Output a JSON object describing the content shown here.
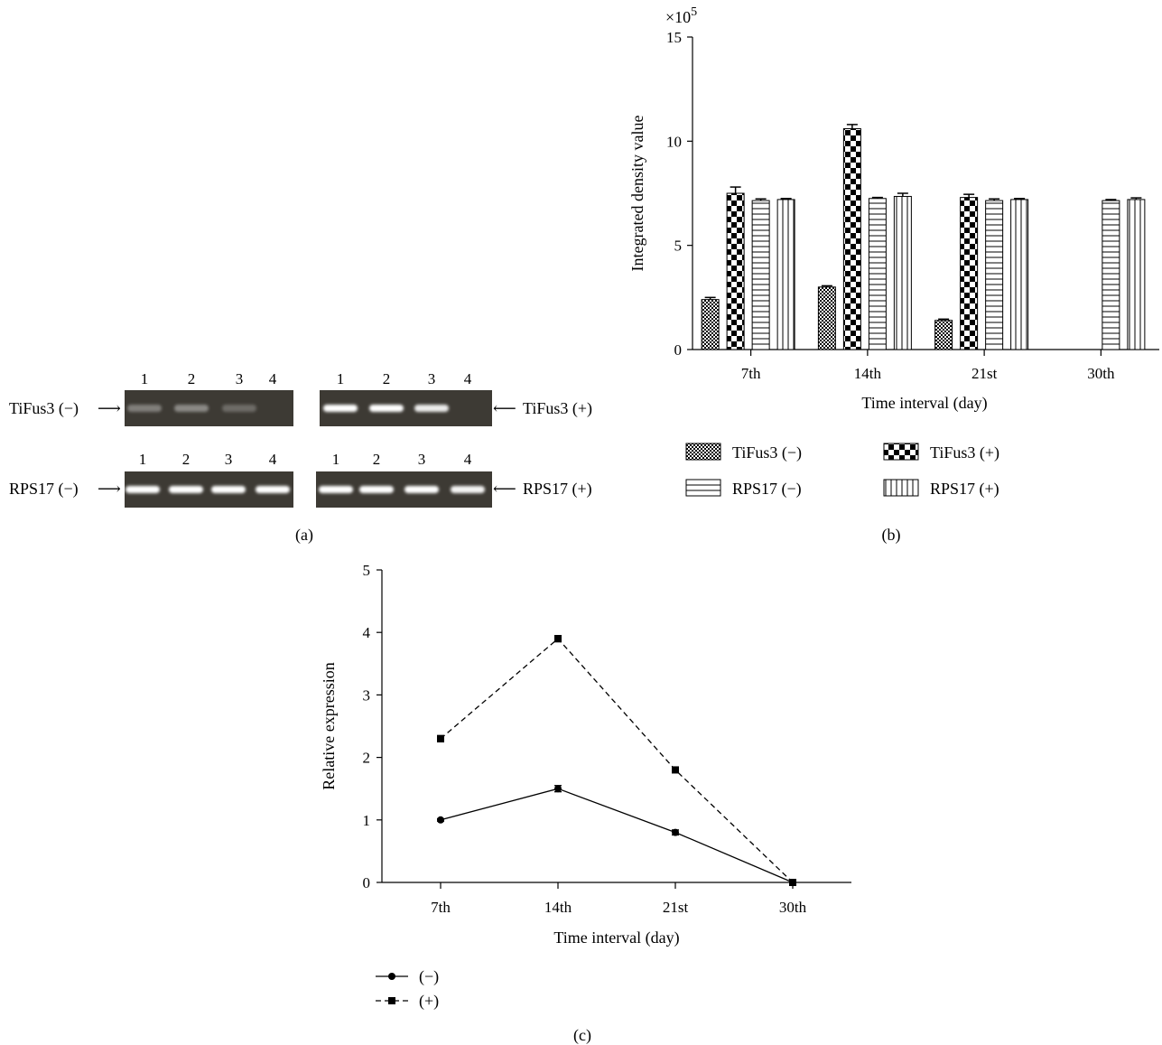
{
  "panel_a": {
    "caption": "(a)",
    "lane_numbers": [
      "1",
      "2",
      "3",
      "4"
    ],
    "row_labels": {
      "tifus3_minus": "TiFus3 (−)",
      "tifus3_plus": "TiFus3 (+)",
      "rps17_minus": "RPS17 (−)",
      "rps17_plus": "RPS17 (+)"
    },
    "gels": [
      {
        "name": "tifus3-minus",
        "bands": [
          0.35,
          0.4,
          0.25,
          0.0
        ]
      },
      {
        "name": "tifus3-plus",
        "bands": [
          1.0,
          1.0,
          0.9,
          0.0
        ]
      },
      {
        "name": "rps17-minus",
        "bands": [
          1.0,
          1.0,
          1.0,
          1.0
        ]
      },
      {
        "name": "rps17-plus",
        "bands": [
          1.0,
          1.0,
          1.0,
          0.95
        ]
      }
    ],
    "colors": {
      "gel": "#3d3a34",
      "band": "#ffffff"
    }
  },
  "chart_data": [
    {
      "panel": "b",
      "type": "bar",
      "caption": "(b)",
      "categories": [
        "7th",
        "14th",
        "21st",
        "30th"
      ],
      "xlabel": "Time interval (day)",
      "ylabel": "Integrated density value",
      "scale_label": "×10",
      "scale_exp": "5",
      "ylim": [
        0,
        15
      ],
      "yticks": [
        "0",
        "5",
        "10",
        "15"
      ],
      "series": [
        {
          "name": "TiFus3 (−)",
          "pattern": "fine-checker",
          "values": [
            2.4,
            3.0,
            1.4,
            0
          ],
          "errors": [
            0.1,
            0.06,
            0.06,
            0
          ]
        },
        {
          "name": "TiFus3 (+)",
          "pattern": "coarse-checker",
          "values": [
            7.5,
            10.6,
            7.3,
            0
          ],
          "errors": [
            0.3,
            0.2,
            0.15,
            0
          ]
        },
        {
          "name": "RPS17 (−)",
          "pattern": "horizontal-lines",
          "values": [
            7.15,
            7.25,
            7.15,
            7.15
          ],
          "errors": [
            0.08,
            0.05,
            0.08,
            0.05
          ]
        },
        {
          "name": "RPS17 (+)",
          "pattern": "vertical-lines",
          "values": [
            7.2,
            7.35,
            7.2,
            7.2
          ],
          "errors": [
            0.05,
            0.15,
            0.05,
            0.08
          ]
        }
      ],
      "legend": "bottom"
    },
    {
      "panel": "c",
      "type": "line",
      "caption": "(c)",
      "categories": [
        "7th",
        "14th",
        "21st",
        "30th"
      ],
      "xlabel": "Time interval (day)",
      "ylabel": "Relative expression",
      "ylim": [
        0,
        5
      ],
      "yticks": [
        "0",
        "1",
        "2",
        "3",
        "4",
        "5"
      ],
      "series": [
        {
          "name": "(−)",
          "marker": "circle",
          "line": "solid",
          "values": [
            1.0,
            1.5,
            0.8,
            0.0
          ],
          "errors": [
            0.02,
            0.05,
            0.04,
            0.02
          ]
        },
        {
          "name": "(+)",
          "marker": "square",
          "line": "dashed",
          "values": [
            2.3,
            3.9,
            1.8,
            0.0
          ],
          "errors": [
            0.05,
            0.05,
            0.04,
            0.02
          ]
        }
      ],
      "legend": "bottom-left"
    }
  ]
}
